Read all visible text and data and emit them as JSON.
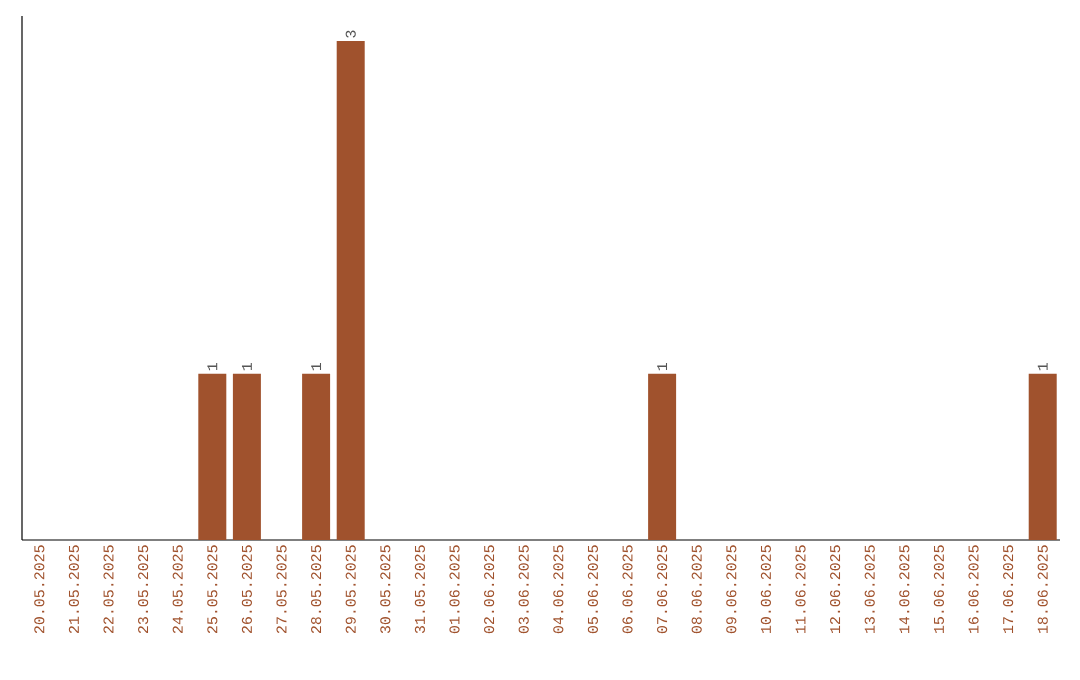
{
  "chart_data": {
    "type": "bar",
    "categories": [
      "20.05.2025",
      "21.05.2025",
      "22.05.2025",
      "23.05.2025",
      "24.05.2025",
      "25.05.2025",
      "26.05.2025",
      "27.05.2025",
      "28.05.2025",
      "29.05.2025",
      "30.05.2025",
      "31.05.2025",
      "01.06.2025",
      "02.06.2025",
      "03.06.2025",
      "04.06.2025",
      "05.06.2025",
      "06.06.2025",
      "07.06.2025",
      "08.06.2025",
      "09.06.2025",
      "10.06.2025",
      "11.06.2025",
      "12.06.2025",
      "13.06.2025",
      "14.06.2025",
      "15.06.2025",
      "16.06.2025",
      "17.06.2025",
      "18.06.2025"
    ],
    "values": [
      0,
      0,
      0,
      0,
      0,
      1,
      1,
      0,
      1,
      3,
      0,
      0,
      0,
      0,
      0,
      0,
      0,
      0,
      1,
      0,
      0,
      0,
      0,
      0,
      0,
      0,
      0,
      0,
      0,
      1
    ],
    "value_labels": [
      null,
      null,
      null,
      null,
      null,
      "1",
      "1",
      null,
      "1",
      "3",
      null,
      null,
      null,
      null,
      null,
      null,
      null,
      null,
      "1",
      null,
      null,
      null,
      null,
      null,
      null,
      null,
      null,
      null,
      null,
      "1"
    ],
    "color": "#a0522d"
  }
}
